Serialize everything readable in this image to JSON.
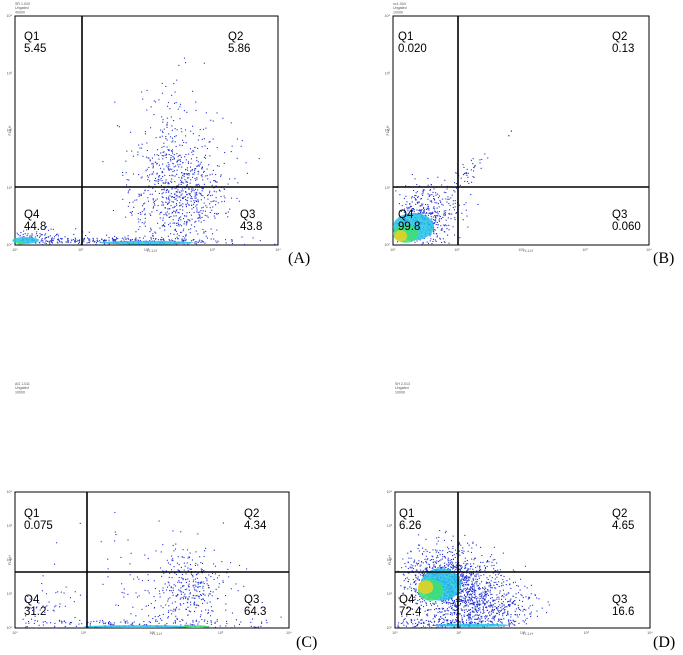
{
  "chart_data": [
    {
      "type": "scatter",
      "panel_label": "(A)",
      "header": [
        "SR 1.020",
        "Ungated",
        "40000"
      ],
      "xlabel": "FL1-H",
      "ylabel": "FL2-H",
      "quadrants": [
        {
          "name": "Q1",
          "value": "5.45"
        },
        {
          "name": "Q2",
          "value": "5.86"
        },
        {
          "name": "Q3",
          "value": "43.8"
        },
        {
          "name": "Q4",
          "value": "44.8"
        }
      ]
    },
    {
      "type": "scatter",
      "panel_label": "(B)",
      "header": [
        "nc1.004",
        "Ungated",
        "10000"
      ],
      "xlabel": "FL1-H",
      "ylabel": "FL2-H",
      "quadrants": [
        {
          "name": "Q1",
          "value": "0.020"
        },
        {
          "name": "Q2",
          "value": "0.13"
        },
        {
          "name": "Q3",
          "value": "0.060"
        },
        {
          "name": "Q4",
          "value": "99.8"
        }
      ]
    },
    {
      "type": "scatter",
      "panel_label": "(C)",
      "header": [
        "AG 1.011",
        "Ungated",
        "10000"
      ],
      "xlabel": "FL1-H",
      "ylabel": "FL2-H",
      "quadrants": [
        {
          "name": "Q1",
          "value": "0.075"
        },
        {
          "name": "Q2",
          "value": "4.34"
        },
        {
          "name": "Q3",
          "value": "64.3"
        },
        {
          "name": "Q4",
          "value": "31.2"
        }
      ]
    },
    {
      "type": "scatter",
      "panel_label": "(D)",
      "header": [
        "SH 2.013",
        "Ungated",
        "10000"
      ],
      "xlabel": "FL1-H",
      "ylabel": "FL2-H",
      "quadrants": [
        {
          "name": "Q1",
          "value": "6.26"
        },
        {
          "name": "Q2",
          "value": "4.65"
        },
        {
          "name": "Q3",
          "value": "16.6"
        },
        {
          "name": "Q4",
          "value": "72.4"
        }
      ]
    }
  ],
  "axis_ticks": [
    "10⁰",
    "10¹",
    "10²",
    "10³",
    "10⁴"
  ],
  "colors": {
    "dots": "#1f2fd0",
    "dense": "#22c3e6",
    "denser": "#3fe070",
    "densest": "#f0d020",
    "gate": "#000000"
  }
}
